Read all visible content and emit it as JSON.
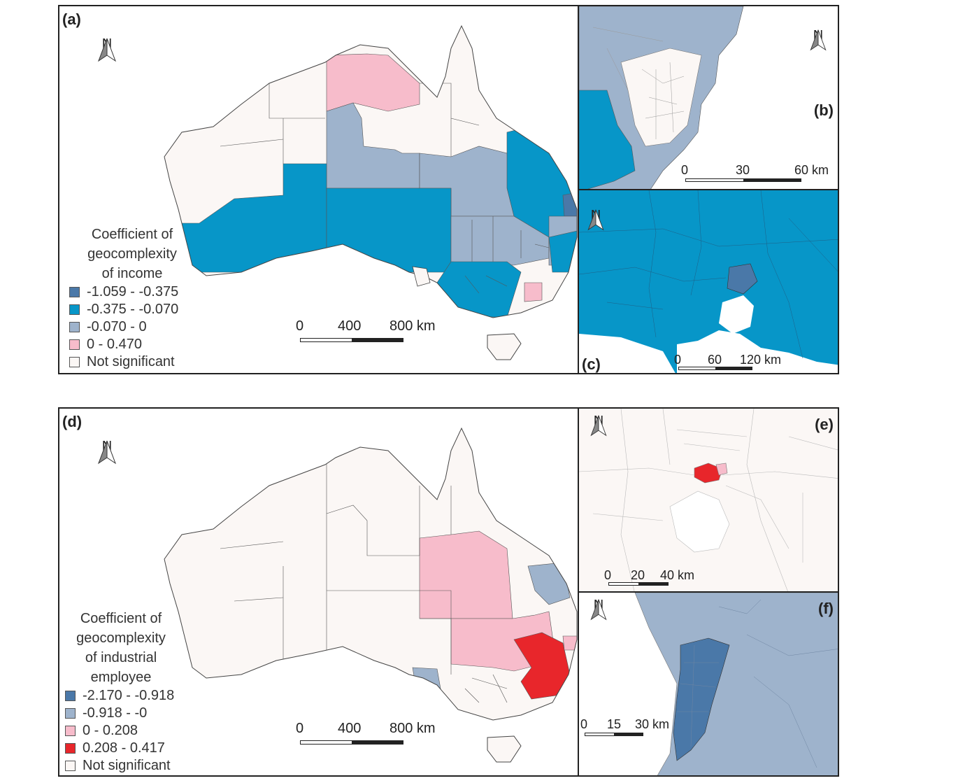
{
  "north_label": "N",
  "colors": {
    "dark_blue": "#4a78a8",
    "blue": "#0796c8",
    "grey_blue": "#9eb3cc",
    "pink": "#f7bccb",
    "red": "#e8262b",
    "not_significant": "#fbf7f5",
    "boundary": "#555555"
  },
  "panel_a": {
    "label": "(a)",
    "legend": {
      "title_lines": [
        "Coefficient of",
        "geocomplexity",
        "of income"
      ],
      "items": [
        {
          "label": "-1.059 - -0.375",
          "color": "#4a78a8"
        },
        {
          "label": "-0.375 - -0.070",
          "color": "#0796c8"
        },
        {
          "label": "-0.070 - 0",
          "color": "#9eb3cc"
        },
        {
          "label": "0 - 0.470",
          "color": "#f7bccb"
        },
        {
          "label": "Not significant",
          "color": "#fbf7f5"
        }
      ]
    },
    "scale": {
      "ticks": [
        "0",
        "400",
        "800 km"
      ]
    }
  },
  "panel_b": {
    "label": "(b)",
    "scale": {
      "ticks": [
        "0",
        "30",
        "60 km"
      ]
    }
  },
  "panel_c": {
    "label": "(c)",
    "scale": {
      "ticks": [
        "0",
        "60",
        "120 km"
      ]
    }
  },
  "panel_d": {
    "label": "(d)",
    "legend": {
      "title_lines": [
        "Coefficient of",
        "geocomplexity",
        "of industrial",
        "employee"
      ],
      "items": [
        {
          "label": "-2.170 - -0.918",
          "color": "#4a78a8"
        },
        {
          "label": "-0.918 - -0",
          "color": "#9eb3cc"
        },
        {
          "label": "0 - 0.208",
          "color": "#f7bccb"
        },
        {
          "label": "0.208 - 0.417",
          "color": "#e8262b"
        },
        {
          "label": "Not significant",
          "color": "#fbf7f5"
        }
      ]
    },
    "scale": {
      "ticks": [
        "0",
        "400",
        "800 km"
      ]
    }
  },
  "panel_e": {
    "label": "(e)",
    "scale": {
      "ticks": [
        "0",
        "20",
        "40 km"
      ]
    }
  },
  "panel_f": {
    "label": "(f)",
    "scale": {
      "ticks": [
        "0",
        "15",
        "30 km"
      ]
    }
  }
}
